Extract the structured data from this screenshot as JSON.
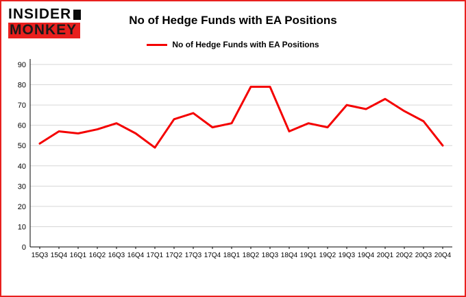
{
  "logo": {
    "line1": "INSIDER",
    "line2": "MONKEY"
  },
  "header": {
    "title": "No of Hedge Funds with EA Positions"
  },
  "legend": {
    "label": "No of Hedge Funds with EA Positions",
    "color": "#f40000"
  },
  "colors": {
    "border": "#e8201e",
    "line": "#f40000",
    "grid": "#d6d6d6",
    "axis": "#000000"
  },
  "chart_data": {
    "type": "line",
    "title": "No of Hedge Funds with EA Positions",
    "categories": [
      "15Q3",
      "15Q4",
      "16Q1",
      "16Q2",
      "16Q3",
      "16Q4",
      "17Q1",
      "17Q2",
      "17Q3",
      "17Q4",
      "18Q1",
      "18Q2",
      "18Q3",
      "18Q4",
      "19Q1",
      "19Q2",
      "19Q3",
      "19Q4",
      "20Q1",
      "20Q2",
      "20Q3",
      "20Q4"
    ],
    "values": [
      51,
      57,
      56,
      58,
      61,
      56,
      49,
      63,
      66,
      59,
      61,
      79,
      79,
      57,
      61,
      59,
      70,
      68,
      73,
      67,
      62,
      50
    ],
    "xlabel": "",
    "ylabel": "",
    "ylim": [
      0,
      90
    ],
    "ytick_step": 10,
    "grid": true,
    "legend_position": "top",
    "line_color": "#f40000",
    "grid_color": "#d6d6d6"
  }
}
